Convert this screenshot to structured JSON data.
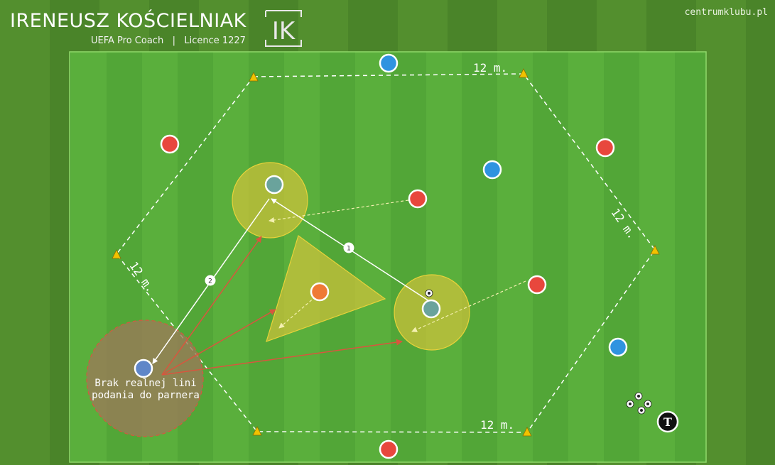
{
  "header": {
    "coach_name": "IRENEUSZ KOŚCIELNIAK",
    "coach_subtitle": "UEFA Pro Coach   |   Licence 1227",
    "logo_text": "IK",
    "website": "centrumklubu.pl"
  },
  "distances": {
    "top": "12 m.",
    "right": "12 m.",
    "left": "12 m.",
    "bottom": "12 m."
  },
  "annotation": {
    "note": "Brak realnej lini podania do parnera"
  },
  "pass_labels": {
    "first": "1",
    "second": "2"
  },
  "coach_marker": {
    "label": "T"
  },
  "colors": {
    "grass": "#4f8a2c",
    "pitch": "#56ad3a",
    "red_player": "#e8473d",
    "blue_player": "#2f93e0",
    "teal_player": "#6aa39c",
    "orange_player": "#ef7a35",
    "cone": "#f2c200",
    "zone_fill": "#d2c33a",
    "pass_arrow": "#ffffff",
    "blocked_arrow": "#d8563e"
  }
}
